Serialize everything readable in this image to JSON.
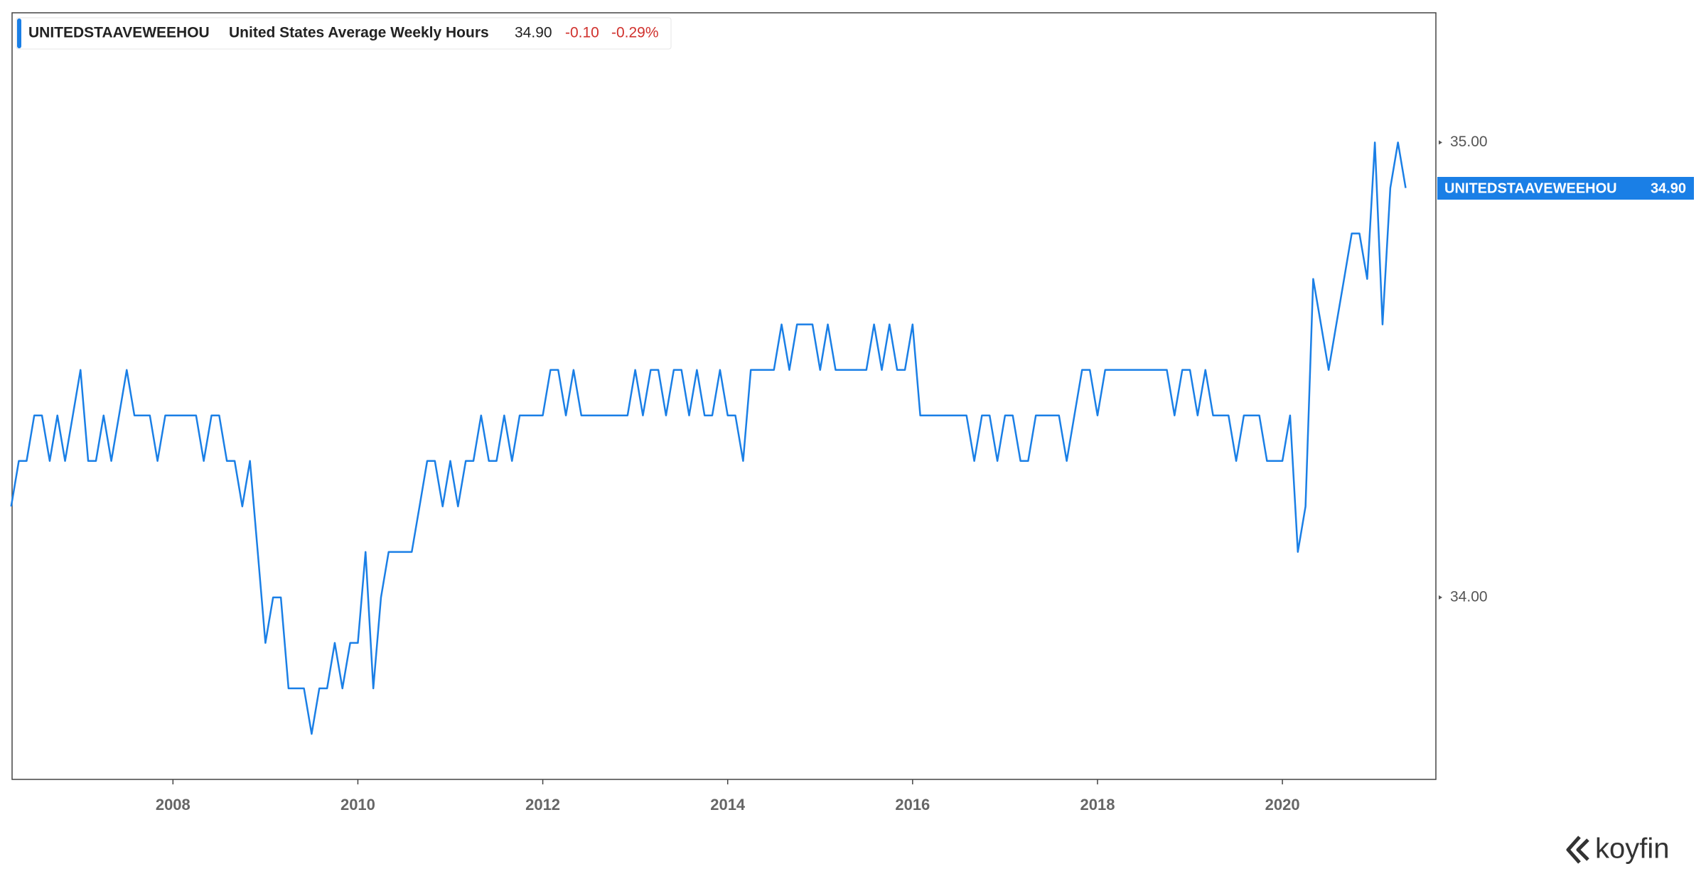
{
  "chart_data": {
    "type": "line",
    "legend": {
      "symbol": "UNITEDSTAAVEWEEHOU",
      "name": "United States Average Weekly Hours",
      "last": "34.90",
      "change": "-0.10",
      "change_pct": "-0.29%"
    },
    "last_badge": {
      "symbol": "UNITEDSTAAVEWEEHOU",
      "value": "34.90"
    },
    "logo": "koyfin",
    "xlim": [
      2006.26,
      2021.66
    ],
    "xticks": [
      2008,
      2010,
      2012,
      2014,
      2016,
      2018,
      2020
    ],
    "ylim": [
      33.6,
      35.285
    ],
    "yticks": [
      {
        "value": 34,
        "label": "34.00"
      },
      {
        "value": 35,
        "label": "35.00"
      }
    ],
    "x": [
      2006.25,
      2006.333,
      2006.417,
      2006.5,
      2006.583,
      2006.667,
      2006.75,
      2006.833,
      2006.917,
      2007.0,
      2007.083,
      2007.167,
      2007.25,
      2007.333,
      2007.417,
      2007.5,
      2007.583,
      2007.667,
      2007.75,
      2007.833,
      2007.917,
      2008.0,
      2008.083,
      2008.167,
      2008.25,
      2008.333,
      2008.417,
      2008.5,
      2008.583,
      2008.667,
      2008.75,
      2008.833,
      2008.917,
      2009.0,
      2009.083,
      2009.167,
      2009.25,
      2009.333,
      2009.417,
      2009.5,
      2009.583,
      2009.667,
      2009.75,
      2009.833,
      2009.917,
      2010.0,
      2010.083,
      2010.167,
      2010.25,
      2010.333,
      2010.417,
      2010.5,
      2010.583,
      2010.667,
      2010.75,
      2010.833,
      2010.917,
      2011.0,
      2011.083,
      2011.167,
      2011.25,
      2011.333,
      2011.417,
      2011.5,
      2011.583,
      2011.667,
      2011.75,
      2011.833,
      2011.917,
      2012.0,
      2012.083,
      2012.167,
      2012.25,
      2012.333,
      2012.417,
      2012.5,
      2012.583,
      2012.667,
      2012.75,
      2012.833,
      2012.917,
      2013.0,
      2013.083,
      2013.167,
      2013.25,
      2013.333,
      2013.417,
      2013.5,
      2013.583,
      2013.667,
      2013.75,
      2013.833,
      2013.917,
      2014.0,
      2014.083,
      2014.167,
      2014.25,
      2014.333,
      2014.417,
      2014.5,
      2014.583,
      2014.667,
      2014.75,
      2014.833,
      2014.917,
      2015.0,
      2015.083,
      2015.167,
      2015.25,
      2015.333,
      2015.417,
      2015.5,
      2015.583,
      2015.667,
      2015.75,
      2015.833,
      2015.917,
      2016.0,
      2016.083,
      2016.167,
      2016.25,
      2016.333,
      2016.417,
      2016.5,
      2016.583,
      2016.667,
      2016.75,
      2016.833,
      2016.917,
      2017.0,
      2017.083,
      2017.167,
      2017.25,
      2017.333,
      2017.417,
      2017.5,
      2017.583,
      2017.667,
      2017.75,
      2017.833,
      2017.917,
      2018.0,
      2018.083,
      2018.167,
      2018.25,
      2018.333,
      2018.417,
      2018.5,
      2018.583,
      2018.667,
      2018.75,
      2018.833,
      2018.917,
      2019.0,
      2019.083,
      2019.167,
      2019.25,
      2019.333,
      2019.417,
      2019.5,
      2019.583,
      2019.667,
      2019.75,
      2019.833,
      2019.917,
      2020.0,
      2020.083,
      2020.167,
      2020.25,
      2020.333,
      2020.417,
      2020.5,
      2020.583,
      2020.667,
      2020.75,
      2020.833,
      2020.917,
      2021.0,
      2021.083,
      2021.167,
      2021.25,
      2021.333
    ],
    "series": [
      {
        "name": "UNITEDSTAAVEWEEHOU",
        "color": "#1a7fe6",
        "values": [
          34.2,
          34.3,
          34.3,
          34.4,
          34.4,
          34.3,
          34.4,
          34.3,
          34.4,
          34.5,
          34.3,
          34.3,
          34.4,
          34.3,
          34.4,
          34.5,
          34.4,
          34.4,
          34.4,
          34.3,
          34.4,
          34.4,
          34.4,
          34.4,
          34.4,
          34.3,
          34.4,
          34.4,
          34.3,
          34.3,
          34.2,
          34.3,
          34.1,
          33.9,
          34.0,
          34.0,
          33.8,
          33.8,
          33.8,
          33.7,
          33.8,
          33.8,
          33.9,
          33.8,
          33.9,
          33.9,
          34.1,
          33.8,
          34.0,
          34.1,
          34.1,
          34.1,
          34.1,
          34.2,
          34.3,
          34.3,
          34.2,
          34.3,
          34.2,
          34.3,
          34.3,
          34.4,
          34.3,
          34.3,
          34.4,
          34.3,
          34.4,
          34.4,
          34.4,
          34.4,
          34.5,
          34.5,
          34.4,
          34.5,
          34.4,
          34.4,
          34.4,
          34.4,
          34.4,
          34.4,
          34.4,
          34.5,
          34.4,
          34.5,
          34.5,
          34.4,
          34.5,
          34.5,
          34.4,
          34.5,
          34.4,
          34.4,
          34.5,
          34.4,
          34.4,
          34.3,
          34.5,
          34.5,
          34.5,
          34.5,
          34.6,
          34.5,
          34.6,
          34.6,
          34.6,
          34.5,
          34.6,
          34.5,
          34.5,
          34.5,
          34.5,
          34.5,
          34.6,
          34.5,
          34.6,
          34.5,
          34.5,
          34.6,
          34.4,
          34.4,
          34.4,
          34.4,
          34.4,
          34.4,
          34.4,
          34.3,
          34.4,
          34.4,
          34.3,
          34.4,
          34.4,
          34.3,
          34.3,
          34.4,
          34.4,
          34.4,
          34.4,
          34.3,
          34.4,
          34.5,
          34.5,
          34.4,
          34.5,
          34.5,
          34.5,
          34.5,
          34.5,
          34.5,
          34.5,
          34.5,
          34.5,
          34.4,
          34.5,
          34.5,
          34.4,
          34.5,
          34.4,
          34.4,
          34.4,
          34.3,
          34.4,
          34.4,
          34.4,
          34.3,
          34.3,
          34.3,
          34.4,
          34.1,
          34.2,
          34.7,
          34.6,
          34.5,
          34.6,
          34.7,
          34.8,
          34.8,
          34.7,
          35.0,
          34.6,
          34.9,
          35.0,
          34.9
        ]
      }
    ]
  }
}
